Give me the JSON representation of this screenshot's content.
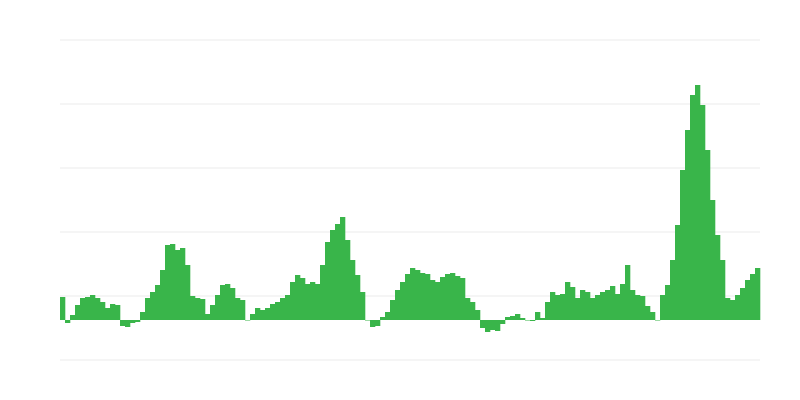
{
  "chart_data": {
    "type": "bar",
    "title": "",
    "xlabel": "",
    "ylabel": "",
    "ylim": [
      -40,
      280
    ],
    "grid": true,
    "grid_values": [
      -40,
      24,
      88,
      152,
      216,
      280
    ],
    "legend": "none",
    "colors": {
      "bar": "#39b54a",
      "grid": "#ebebeb"
    },
    "values": [
      23,
      -3,
      5,
      15,
      22,
      23,
      25,
      22,
      18,
      12,
      16,
      15,
      -6,
      -7,
      -3,
      -2,
      8,
      22,
      28,
      35,
      50,
      75,
      76,
      70,
      72,
      55,
      24,
      22,
      21,
      6,
      15,
      25,
      35,
      36,
      32,
      22,
      20,
      0,
      6,
      12,
      10,
      12,
      16,
      18,
      22,
      25,
      38,
      45,
      42,
      36,
      38,
      36,
      55,
      78,
      90,
      96,
      103,
      80,
      60,
      45,
      28,
      0,
      -7,
      -6,
      3,
      8,
      20,
      30,
      38,
      46,
      52,
      50,
      47,
      46,
      40,
      38,
      43,
      46,
      47,
      44,
      42,
      22,
      18,
      10,
      -8,
      -12,
      -10,
      -11,
      -4,
      3,
      4,
      6,
      2,
      0,
      -1,
      8,
      2,
      18,
      28,
      25,
      26,
      38,
      33,
      22,
      30,
      28,
      22,
      25,
      28,
      30,
      34,
      26,
      36,
      55,
      30,
      25,
      24,
      14,
      8,
      0,
      25,
      35,
      60,
      95,
      150,
      190,
      225,
      235,
      215,
      170,
      120,
      85,
      60,
      22,
      20,
      25,
      32,
      40,
      46,
      52
    ]
  }
}
